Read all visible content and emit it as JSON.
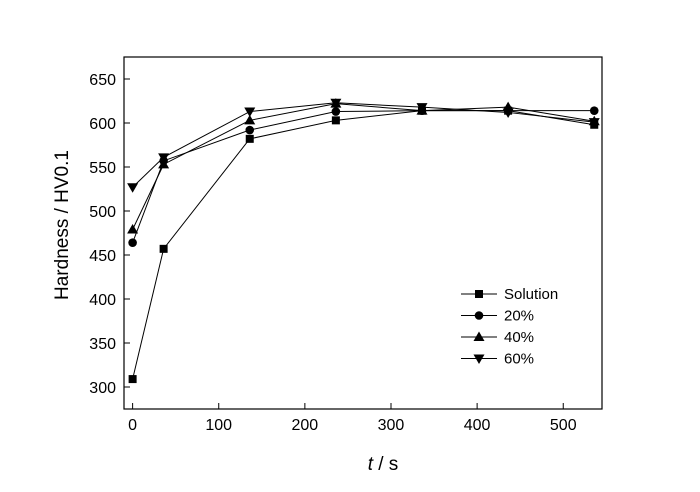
{
  "chart_data": {
    "type": "line",
    "title": "",
    "xlabel_italic": "t",
    "xlabel_rest": " / s",
    "ylabel": "Hardness / HV0.1",
    "xlim": [
      -10,
      545
    ],
    "ylim": [
      275,
      675
    ],
    "xticks": [
      0,
      100,
      200,
      300,
      400,
      500
    ],
    "yticks": [
      300,
      350,
      400,
      450,
      500,
      550,
      600,
      650
    ],
    "legend_position": "lower-right",
    "grid": false,
    "series": [
      {
        "name": "Solution",
        "marker": "square",
        "x": [
          0,
          36,
          136,
          236,
          336,
          436,
          536
        ],
        "y": [
          309,
          457,
          582,
          603,
          614,
          614,
          598
        ]
      },
      {
        "name": "20%",
        "marker": "circle",
        "x": [
          0,
          36,
          136,
          236,
          336,
          436,
          536
        ],
        "y": [
          464,
          557,
          592,
          613,
          614,
          614,
          614
        ]
      },
      {
        "name": "40%",
        "marker": "triangle-up",
        "x": [
          0,
          36,
          136,
          236,
          336,
          436,
          536
        ],
        "y": [
          479,
          553,
          603,
          622,
          614,
          618,
          602
        ]
      },
      {
        "name": "60%",
        "marker": "triangle-down",
        "x": [
          0,
          36,
          136,
          236,
          336,
          436,
          536
        ],
        "y": [
          527,
          561,
          613,
          623,
          618,
          612,
          601
        ]
      }
    ]
  }
}
